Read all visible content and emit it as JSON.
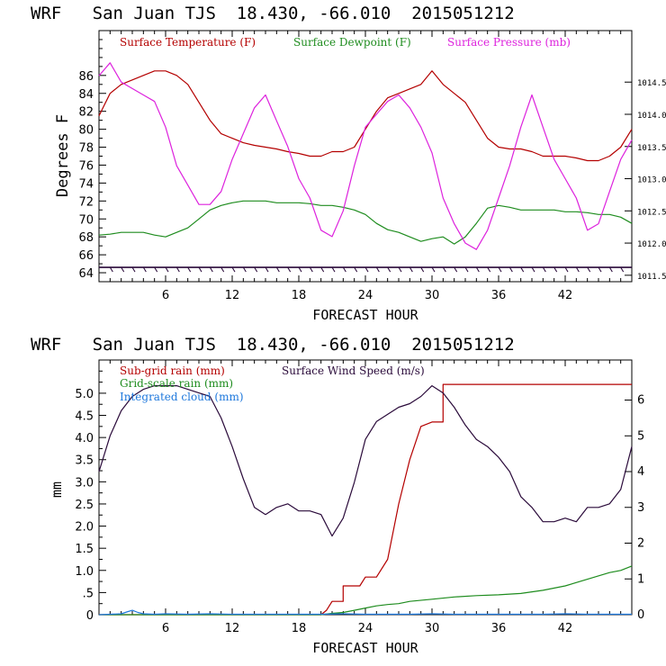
{
  "colors": {
    "temperature": "#b40000",
    "dewpoint": "#1e8c1e",
    "pressure": "#dd22dd",
    "wind": "#2a0a3a",
    "subgrid_rain": "#b40000",
    "grid_rain": "#1e8c1e",
    "cloud": "#1e78dc",
    "wind_barbs": "#2a0a3a"
  },
  "chart_data": [
    {
      "type": "line",
      "title": "WRF   San Juan TJS  18.430, -66.010  2015051212",
      "xlabel": "FORECAST HOUR",
      "ylabel": "Degrees F",
      "xlim": [
        0,
        48
      ],
      "ylim": [
        63,
        91
      ],
      "y2lim": [
        1011.4,
        1015.3
      ],
      "xticks": [
        6,
        12,
        18,
        24,
        30,
        36,
        42
      ],
      "yticks": [
        64,
        66,
        68,
        70,
        72,
        74,
        76,
        78,
        80,
        82,
        84,
        86
      ],
      "y2ticks": [
        {
          "value": 1011.5,
          "label": "1011.5"
        },
        {
          "value": 1012.0,
          "label": "1012.0"
        },
        {
          "value": 1012.5,
          "label": "1012.5"
        },
        {
          "value": 1013.0,
          "label": "1013.0"
        },
        {
          "value": 1013.5,
          "label": "1013.5"
        },
        {
          "value": 1014.0,
          "label": "1014.0"
        },
        {
          "value": 1014.5,
          "label": "1014.5"
        }
      ],
      "legend": [
        "Surface Temperature (F)",
        "Surface Dewpoint (F)",
        "Surface Pressure (mb)"
      ],
      "wind_barb_level": 64.6,
      "series": [
        {
          "name": "Surface Temperature (F)",
          "color_key": "temperature",
          "axis": "left",
          "x": [
            0,
            1,
            2,
            3,
            4,
            5,
            6,
            7,
            8,
            9,
            10,
            11,
            12,
            13,
            14,
            15,
            16,
            17,
            18,
            19,
            20,
            21,
            22,
            23,
            24,
            25,
            26,
            27,
            28,
            29,
            30,
            31,
            32,
            33,
            34,
            35,
            36,
            37,
            38,
            39,
            40,
            41,
            42,
            43,
            44,
            45,
            46,
            47,
            48
          ],
          "y": [
            81.5,
            84,
            85,
            85.5,
            86,
            86.5,
            86.5,
            86,
            85,
            83,
            81,
            79.5,
            79,
            78.5,
            78.2,
            78,
            77.8,
            77.5,
            77.3,
            77,
            77,
            77.5,
            77.5,
            78,
            80,
            82,
            83.5,
            84,
            84.5,
            85,
            86.5,
            85,
            84,
            83,
            81,
            79,
            78,
            77.8,
            77.8,
            77.5,
            77,
            77,
            77,
            76.8,
            76.5,
            76.5,
            77,
            78,
            80
          ]
        },
        {
          "name": "Surface Dewpoint (F)",
          "color_key": "dewpoint",
          "axis": "left",
          "x": [
            0,
            1,
            2,
            3,
            4,
            5,
            6,
            7,
            8,
            9,
            10,
            11,
            12,
            13,
            14,
            15,
            16,
            17,
            18,
            19,
            20,
            21,
            22,
            23,
            24,
            25,
            26,
            27,
            28,
            29,
            30,
            31,
            32,
            33,
            34,
            35,
            36,
            37,
            38,
            39,
            40,
            41,
            42,
            43,
            44,
            45,
            46,
            47,
            48
          ],
          "y": [
            68.2,
            68.3,
            68.5,
            68.5,
            68.5,
            68.2,
            68,
            68.5,
            69,
            70,
            71,
            71.5,
            71.8,
            72,
            72,
            72,
            71.8,
            71.8,
            71.8,
            71.7,
            71.5,
            71.5,
            71.3,
            71,
            70.5,
            69.5,
            68.8,
            68.5,
            68,
            67.5,
            67.8,
            68,
            67.2,
            68,
            69.5,
            71.2,
            71.5,
            71.3,
            71,
            71,
            71,
            71,
            70.8,
            70.8,
            70.7,
            70.5,
            70.5,
            70.2,
            69.5
          ]
        },
        {
          "name": "Surface Pressure (mb)",
          "color_key": "pressure",
          "axis": "right",
          "x": [
            0,
            1,
            2,
            3,
            4,
            5,
            6,
            7,
            8,
            9,
            10,
            11,
            12,
            13,
            14,
            15,
            16,
            17,
            18,
            19,
            20,
            21,
            22,
            23,
            24,
            25,
            26,
            27,
            28,
            29,
            30,
            31,
            32,
            33,
            34,
            35,
            36,
            37,
            38,
            39,
            40,
            41,
            42,
            43,
            44,
            45,
            46,
            47,
            48
          ],
          "y": [
            1014.6,
            1014.8,
            1014.5,
            1014.4,
            1014.3,
            1014.2,
            1013.8,
            1013.2,
            1012.9,
            1012.6,
            1012.6,
            1012.8,
            1013.3,
            1013.7,
            1014.1,
            1014.3,
            1013.9,
            1013.5,
            1013.0,
            1012.7,
            1012.2,
            1012.1,
            1012.5,
            1013.2,
            1013.8,
            1014.0,
            1014.2,
            1014.3,
            1014.1,
            1013.8,
            1013.4,
            1012.7,
            1012.3,
            1012.0,
            1011.9,
            1012.2,
            1012.7,
            1013.2,
            1013.8,
            1014.3,
            1013.8,
            1013.3,
            1013.0,
            1012.7,
            1012.2,
            1012.3,
            1012.8,
            1013.3,
            1013.6
          ]
        }
      ]
    },
    {
      "type": "line",
      "title": "WRF   San Juan TJS  18.430, -66.010  2015051212",
      "xlabel": "FORECAST HOUR",
      "ylabel": "mm",
      "xlim": [
        0,
        48
      ],
      "ylim": [
        0,
        5.75
      ],
      "y2lim": [
        0,
        7.12
      ],
      "xticks": [
        6,
        12,
        18,
        24,
        30,
        36,
        42
      ],
      "yticks": [
        {
          "value": 0,
          "label": "0"
        },
        {
          "value": 0.5,
          "label": ".5"
        },
        {
          "value": 1.0,
          "label": "1.0"
        },
        {
          "value": 1.5,
          "label": "1.5"
        },
        {
          "value": 2.0,
          "label": "2.0"
        },
        {
          "value": 2.5,
          "label": "2.5"
        },
        {
          "value": 3.0,
          "label": "3.0"
        },
        {
          "value": 3.5,
          "label": "3.5"
        },
        {
          "value": 4.0,
          "label": "4.0"
        },
        {
          "value": 4.5,
          "label": "4.5"
        },
        {
          "value": 5.0,
          "label": "5.0"
        }
      ],
      "y2ticks": [
        0,
        1,
        2,
        3,
        4,
        5,
        6
      ],
      "legend_left": [
        "Sub-grid rain (mm)",
        "Grid-scale rain (mm)",
        "Integrated cloud (mm)"
      ],
      "legend_right": [
        "Surface Wind Speed (m/s)"
      ],
      "series": [
        {
          "name": "Sub-grid rain (mm)",
          "color_key": "subgrid_rain",
          "axis": "left",
          "x": [
            0,
            20,
            20.5,
            21,
            22,
            22,
            23.5,
            24,
            24.5,
            25,
            26,
            27,
            28,
            29,
            30,
            30.5,
            31,
            31,
            48
          ],
          "y": [
            0,
            0,
            0.1,
            0.3,
            0.3,
            0.65,
            0.65,
            0.85,
            0.85,
            0.85,
            1.25,
            2.5,
            3.5,
            4.25,
            4.35,
            4.35,
            4.35,
            5.2,
            5.2
          ]
        },
        {
          "name": "Grid-scale rain (mm)",
          "color_key": "grid_rain",
          "axis": "left",
          "x": [
            0,
            20,
            21,
            22,
            23,
            24,
            25,
            26,
            27,
            28,
            30,
            32,
            34,
            36,
            38,
            40,
            42,
            44,
            46,
            47,
            48
          ],
          "y": [
            0,
            0,
            0.03,
            0.05,
            0.1,
            0.15,
            0.2,
            0.23,
            0.25,
            0.3,
            0.35,
            0.4,
            0.43,
            0.45,
            0.48,
            0.55,
            0.65,
            0.8,
            0.95,
            1.0,
            1.1
          ]
        },
        {
          "name": "Integrated cloud (mm)",
          "color_key": "cloud",
          "axis": "left",
          "x": [
            0,
            1,
            2,
            2.5,
            3,
            3.5,
            4,
            5,
            6,
            8,
            10,
            12,
            14,
            16,
            18,
            20,
            22,
            24,
            26,
            28,
            30,
            32,
            34,
            36,
            38,
            40,
            42,
            44,
            46,
            48
          ],
          "y": [
            0,
            0.01,
            0.02,
            0.06,
            0.1,
            0.05,
            0.02,
            0.01,
            0.02,
            0.01,
            0.02,
            0.01,
            0.01,
            0.01,
            0.01,
            0.01,
            0.02,
            0.01,
            0.01,
            0.01,
            0.02,
            0.01,
            0.01,
            0.01,
            0.01,
            0.01,
            0.02,
            0.01,
            0.01,
            0.01
          ]
        },
        {
          "name": "Surface Wind Speed (m/s)",
          "color_key": "wind",
          "axis": "right",
          "x": [
            0,
            1,
            2,
            3,
            4,
            5,
            6,
            7,
            8,
            9,
            10,
            11,
            12,
            13,
            14,
            15,
            16,
            17,
            18,
            19,
            20,
            21,
            22,
            23,
            24,
            25,
            26,
            27,
            28,
            29,
            30,
            31,
            32,
            33,
            34,
            35,
            36,
            37,
            38,
            39,
            40,
            41,
            42,
            43,
            44,
            45,
            46,
            47,
            48
          ],
          "y": [
            4.0,
            5.0,
            5.7,
            6.1,
            6.3,
            6.4,
            6.4,
            6.4,
            6.3,
            6.2,
            6.1,
            5.5,
            4.7,
            3.8,
            3.0,
            2.8,
            3.0,
            3.1,
            2.9,
            2.9,
            2.8,
            2.2,
            2.7,
            3.7,
            4.9,
            5.4,
            5.6,
            5.8,
            5.9,
            6.1,
            6.4,
            6.2,
            5.8,
            5.3,
            4.9,
            4.7,
            4.4,
            4.0,
            3.3,
            3.0,
            2.6,
            2.6,
            2.7,
            2.6,
            3.0,
            3.0,
            3.1,
            3.5,
            4.7
          ]
        }
      ]
    }
  ]
}
